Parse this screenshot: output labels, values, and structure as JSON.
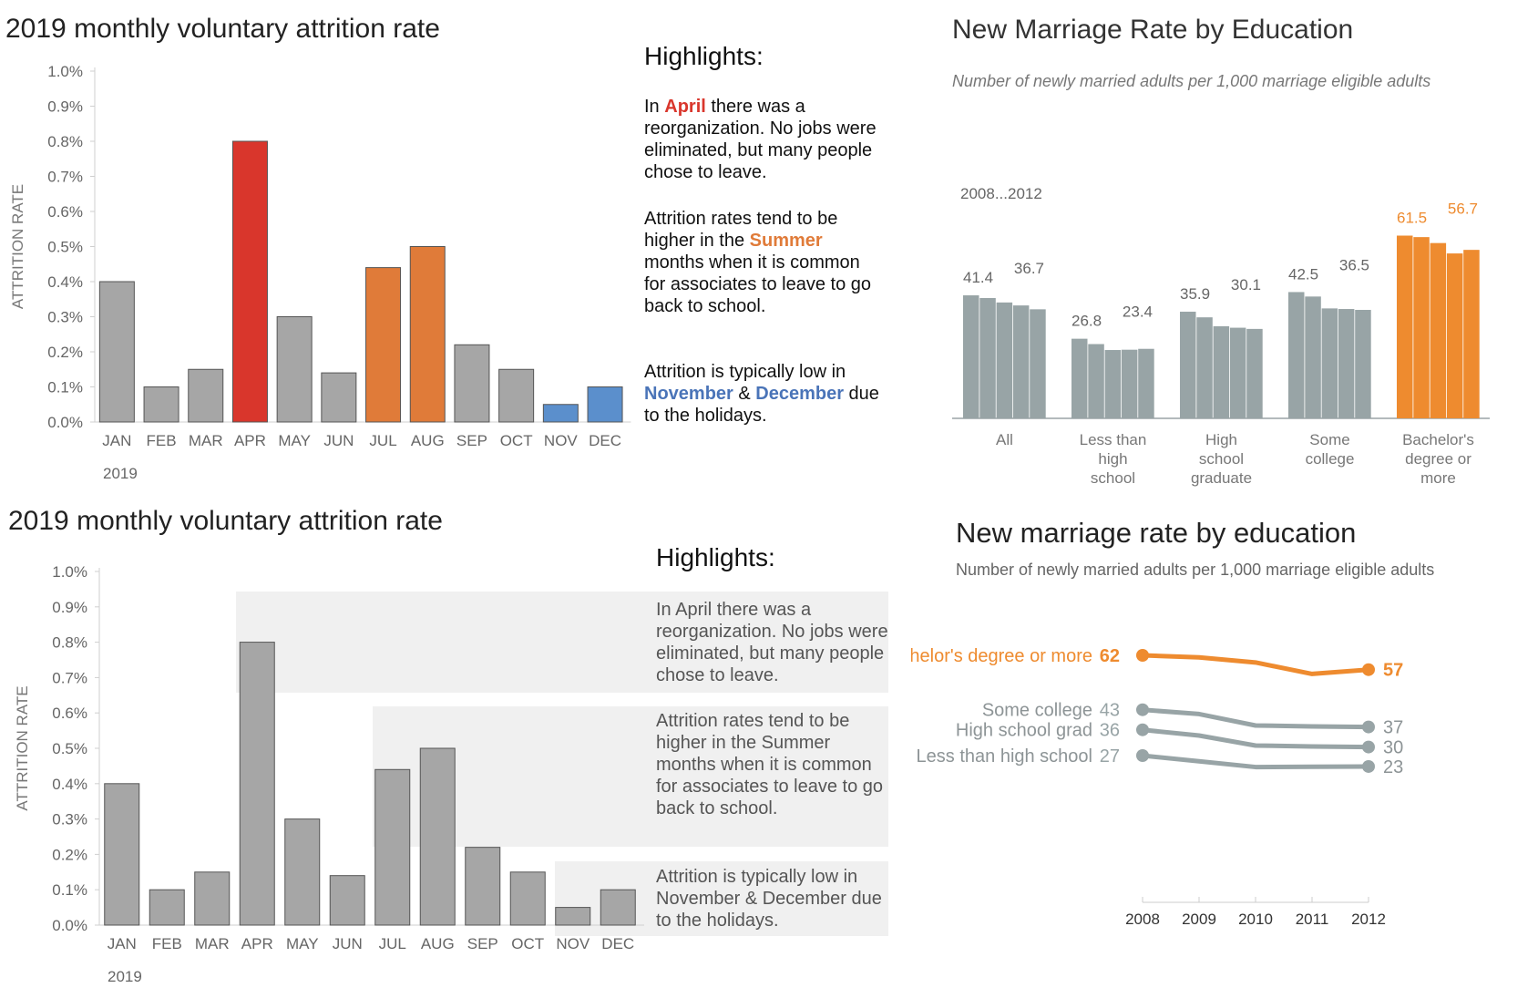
{
  "panel_tl": {
    "title": "2019 monthly voluntary attrition rate",
    "highlights_title": "Highlights:",
    "p1": {
      "pre": "In ",
      "em": "April",
      "post": " there was a reorganization. No jobs were eliminated, but many people chose to leave."
    },
    "p2": {
      "pre": "Attrition rates tend to be higher in the ",
      "em": "Summer",
      "post": " months when it is common for associates to leave to go back to school."
    },
    "p3": {
      "pre": "Attrition is typically low in ",
      "em1": "November",
      "mid": " & ",
      "em2": "December",
      "post": " due to the holidays."
    }
  },
  "panel_bl": {
    "title": "2019 monthly voluntary attrition rate",
    "highlights_title": "Highlights:",
    "p1": "In April there was a reorganization. No jobs were eliminated, but many people chose to leave.",
    "p2": "Attrition rates tend to be higher in the Summer months when it is common for associates to leave to go back to school.",
    "p3": "Attrition is typically low in November & December due to the holidays."
  },
  "panel_tr": {
    "title": "New Marriage Rate by Education",
    "subtitle": "Number of newly married adults per 1,000 marriage eligible adults",
    "range_note": "2008...2012"
  },
  "panel_br": {
    "title": "New marriage rate by education",
    "subtitle": "Number of newly married adults per 1,000 marriage eligible adults"
  },
  "colors": {
    "gray_bar": "#a6a6a6",
    "red": "#d9362c",
    "orange": "#e07b39",
    "blue": "#5b8fcc",
    "marriage_gray": "#98a4a6",
    "marriage_orange": "#ee8b2f"
  },
  "chart_data": [
    {
      "type": "bar",
      "ylabel": "ATTRITION RATE",
      "xlabel": "2019",
      "ylim": [
        0,
        1.0
      ],
      "categories": [
        "JAN",
        "FEB",
        "MAR",
        "APR",
        "MAY",
        "JUN",
        "JUL",
        "AUG",
        "SEP",
        "OCT",
        "NOV",
        "DEC"
      ],
      "values": [
        0.4,
        0.1,
        0.15,
        0.8,
        0.3,
        0.14,
        0.44,
        0.5,
        0.22,
        0.15,
        0.05,
        0.1
      ],
      "yticks": [
        "0.0%",
        "0.1%",
        "0.2%",
        "0.3%",
        "0.4%",
        "0.5%",
        "0.6%",
        "0.7%",
        "0.8%",
        "0.9%",
        "1.0%"
      ],
      "bar_colors": [
        "gray",
        "gray",
        "gray",
        "red",
        "gray",
        "gray",
        "orange",
        "orange",
        "gray",
        "gray",
        "blue",
        "blue"
      ]
    },
    {
      "type": "bar",
      "ylabel": "ATTRITION RATE",
      "xlabel": "2019",
      "ylim": [
        0,
        1.0
      ],
      "categories": [
        "JAN",
        "FEB",
        "MAR",
        "APR",
        "MAY",
        "JUN",
        "JUL",
        "AUG",
        "SEP",
        "OCT",
        "NOV",
        "DEC"
      ],
      "values": [
        0.4,
        0.1,
        0.15,
        0.8,
        0.3,
        0.14,
        0.44,
        0.5,
        0.22,
        0.15,
        0.05,
        0.1
      ],
      "yticks": [
        "0.0%",
        "0.1%",
        "0.2%",
        "0.3%",
        "0.4%",
        "0.5%",
        "0.6%",
        "0.7%",
        "0.8%",
        "0.9%",
        "1.0%"
      ]
    },
    {
      "type": "bar",
      "groups": [
        {
          "label": "All",
          "values": [
            41.4,
            40.5,
            39.0,
            38.0,
            36.7
          ],
          "first_label": "41.4",
          "last_label": "36.7",
          "highlight": false
        },
        {
          "label": "Less than high school",
          "values": [
            26.8,
            25.0,
            23.0,
            23.1,
            23.4
          ],
          "first_label": "26.8",
          "last_label": "23.4",
          "highlight": false
        },
        {
          "label": "High school graduate",
          "values": [
            35.9,
            34.0,
            31.0,
            30.5,
            30.1
          ],
          "first_label": "35.9",
          "last_label": "30.1",
          "highlight": false
        },
        {
          "label": "Some college",
          "values": [
            42.5,
            41.0,
            37.0,
            36.8,
            36.5
          ],
          "first_label": "42.5",
          "last_label": "36.5",
          "highlight": false
        },
        {
          "label": "Bachelor's degree or more",
          "values": [
            61.5,
            61.0,
            59.0,
            55.5,
            56.7
          ],
          "first_label": "61.5",
          "last_label": "56.7",
          "highlight": true
        }
      ],
      "ylim": [
        0,
        70
      ]
    },
    {
      "type": "line",
      "x": [
        "2008",
        "2009",
        "2010",
        "2011",
        "2012"
      ],
      "ylim": [
        18,
        66
      ],
      "series": [
        {
          "name": "Bachelor's degree or more",
          "start_label": "62",
          "end_label": "57",
          "values": [
            62,
            61.3,
            59.5,
            55.5,
            57
          ],
          "highlight": true
        },
        {
          "name": "Some college",
          "start_label": "43",
          "end_label": "37",
          "values": [
            43,
            41.5,
            37.5,
            37.2,
            37
          ],
          "highlight": false
        },
        {
          "name": "High school grad",
          "start_label": "36",
          "end_label": "30",
          "values": [
            36,
            34,
            30.5,
            30.2,
            30
          ],
          "highlight": false
        },
        {
          "name": "Less than high school",
          "start_label": "27",
          "end_label": "23",
          "values": [
            27,
            25,
            23,
            23.1,
            23.2
          ],
          "highlight": false
        }
      ]
    }
  ]
}
